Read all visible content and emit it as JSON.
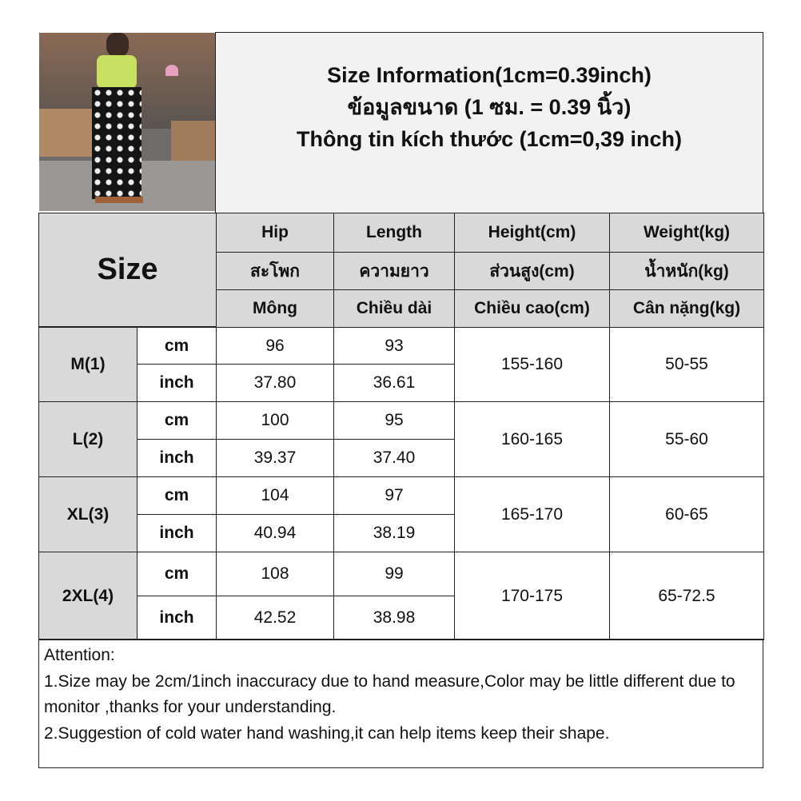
{
  "title_lines": [
    "Size Information(1cm=0.39inch)",
    "ข้อมูลขนาด (1 ซม. = 0.39 นิ้ว)",
    "Thông tin kích thước (1cm=0,39 inch)"
  ],
  "size_header": "Size",
  "columns": [
    {
      "en": "Hip",
      "th": "สะโพก",
      "vi": "Mông"
    },
    {
      "en": "Length",
      "th": "ความยาว",
      "vi": "Chiều dài"
    },
    {
      "en": "Height(cm)",
      "th": "ส่วนสูง(cm)",
      "vi": "Chiều cao(cm)"
    },
    {
      "en": "Weight(kg)",
      "th": "น้ำหนัก(kg)",
      "vi": "Cân nặng(kg)"
    }
  ],
  "rows": [
    {
      "size": "M(1)",
      "cm": [
        "96",
        "93"
      ],
      "inch": [
        "37.80",
        "36.61"
      ],
      "height": "155-160",
      "weight": "50-55"
    },
    {
      "size": "L(2)",
      "cm": [
        "100",
        "95"
      ],
      "inch": [
        "39.37",
        "37.40"
      ],
      "height": "160-165",
      "weight": "55-60"
    },
    {
      "size": "XL(3)",
      "cm": [
        "104",
        "97"
      ],
      "inch": [
        "40.94",
        "38.19"
      ],
      "height": "165-170",
      "weight": "60-65"
    },
    {
      "size": "2XL(4)",
      "cm": [
        "108",
        "99"
      ],
      "inch": [
        "42.52",
        "38.98"
      ],
      "height": "170-175",
      "weight": "65-72.5"
    }
  ],
  "units": {
    "cm": "cm",
    "inch": "inch"
  },
  "attention": [
    "Attention:",
    "1.Size may be 2cm/1inch inaccuracy due to hand measure,Color may be little different due to monitor ,thanks for your understanding.",
    "2.Suggestion of cold water hand washing,it can help items keep their shape."
  ],
  "colors": {
    "header_bg": "#d9d9d9",
    "title_bg": "#f2f2f2",
    "border": "#222222"
  }
}
